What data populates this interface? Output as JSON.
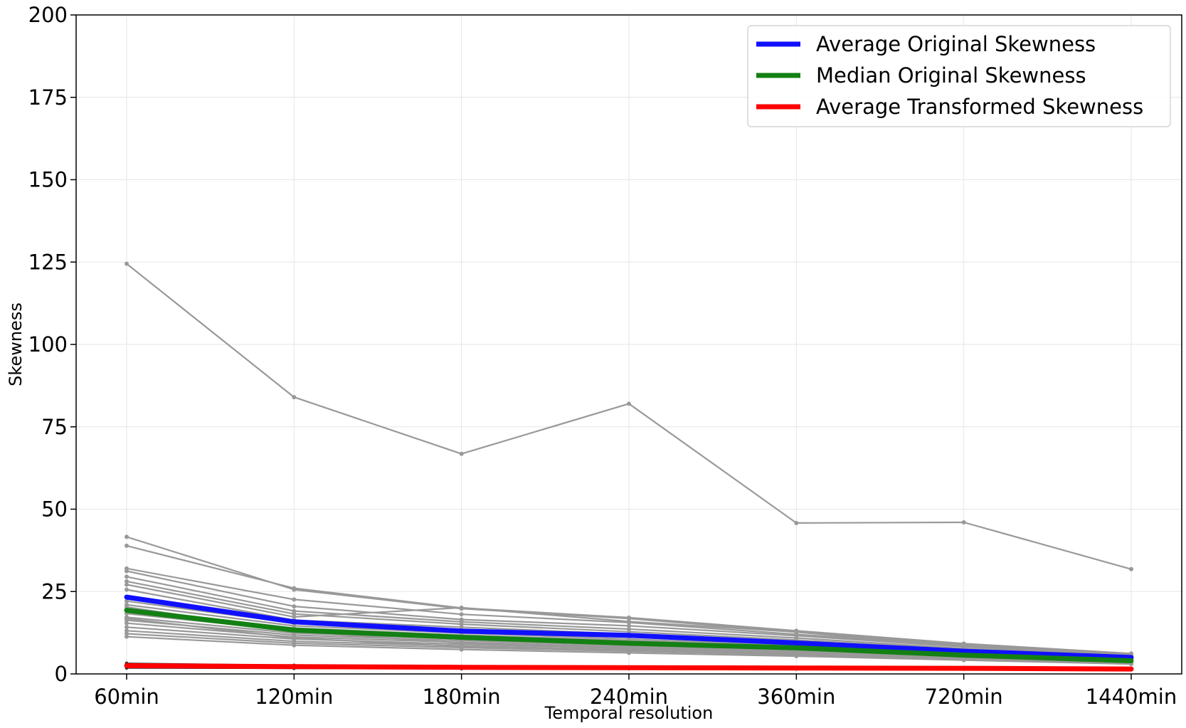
{
  "chart_data": {
    "type": "line",
    "xlabel": "Temporal resolution",
    "ylabel": "Skewness",
    "categories": [
      "60min",
      "120min",
      "180min",
      "240min",
      "360min",
      "720min",
      "1440min"
    ],
    "ylim": [
      0,
      200
    ],
    "yticks": [
      0,
      25,
      50,
      75,
      100,
      125,
      150,
      175,
      200
    ],
    "grid": true,
    "legend_position": "top-right",
    "colors": {
      "individual": "#999999",
      "average_original": "#1010ff",
      "median_original": "#138013",
      "average_transformed": "#ff0000",
      "transformed_individual": "#333333"
    },
    "series": [
      {
        "name": "Average Original Skewness",
        "color": "#1010ff",
        "values": [
          23.3,
          15.8,
          13.0,
          11.7,
          9.4,
          6.9,
          5.0
        ]
      },
      {
        "name": "Median Original Skewness",
        "color": "#138013",
        "values": [
          19.3,
          13.3,
          11.1,
          9.3,
          7.9,
          5.7,
          4.0
        ]
      },
      {
        "name": "Average Transformed Skewness",
        "color": "#ff0000",
        "values": [
          2.5,
          2.2,
          2.0,
          1.9,
          1.8,
          1.7,
          1.5
        ]
      }
    ],
    "individual_series": [
      {
        "values": [
          124.5,
          84.0,
          66.8,
          82.0,
          45.8,
          46.0,
          31.8
        ]
      },
      {
        "values": [
          41.6,
          25.6,
          19.8,
          16.8,
          12.7,
          8.8,
          5.9
        ]
      },
      {
        "values": [
          38.9,
          26.0,
          20.0,
          17.1,
          13.1,
          9.2,
          6.2
        ]
      },
      {
        "values": [
          32.0,
          22.6,
          18.1,
          15.6,
          12.0,
          8.6,
          5.8
        ]
      },
      {
        "values": [
          31.2,
          20.5,
          16.5,
          14.6,
          11.6,
          8.2,
          5.6
        ]
      },
      {
        "values": [
          29.5,
          19.1,
          15.8,
          13.6,
          10.9,
          7.7,
          5.3
        ]
      },
      {
        "values": [
          28.1,
          18.2,
          15.1,
          12.8,
          10.3,
          7.4,
          5.1
        ]
      },
      {
        "values": [
          27.1,
          17.3,
          20.1,
          15.9,
          12.7,
          8.3,
          5.4
        ]
      },
      {
        "values": [
          25.6,
          16.3,
          14.2,
          12.1,
          9.8,
          7.0,
          4.9
        ]
      },
      {
        "values": [
          22.1,
          15.4,
          13.2,
          11.2,
          9.1,
          6.6,
          4.6
        ]
      },
      {
        "values": [
          21.0,
          14.6,
          12.4,
          10.6,
          8.6,
          6.3,
          4.4
        ]
      },
      {
        "values": [
          19.6,
          13.9,
          11.8,
          10.1,
          8.2,
          6.0,
          4.2
        ]
      },
      {
        "values": [
          18.3,
          13.1,
          11.1,
          9.5,
          7.7,
          5.7,
          4.0
        ]
      },
      {
        "values": [
          17.2,
          12.4,
          10.6,
          9.0,
          7.4,
          5.4,
          3.8
        ]
      },
      {
        "values": [
          16.3,
          11.8,
          10.1,
          8.6,
          7.1,
          5.2,
          3.7
        ]
      },
      {
        "values": [
          15.4,
          11.2,
          9.6,
          8.2,
          6.8,
          5.0,
          3.5
        ]
      },
      {
        "values": [
          14.2,
          10.6,
          9.0,
          7.7,
          6.4,
          4.8,
          3.4
        ]
      },
      {
        "values": [
          13.1,
          9.9,
          8.5,
          7.3,
          6.1,
          4.6,
          3.3
        ]
      },
      {
        "values": [
          12.2,
          9.3,
          8.0,
          6.9,
          5.8,
          4.4,
          3.1
        ]
      },
      {
        "values": [
          11.3,
          8.7,
          7.4,
          6.4,
          5.4,
          4.2,
          3.0
        ]
      },
      {
        "values": [
          16.8,
          10.9,
          8.3,
          7.0,
          5.9,
          4.5,
          3.2
        ]
      },
      {
        "values": [
          20.3,
          12.8,
          9.4,
          8.0,
          6.6,
          4.9,
          3.5
        ]
      }
    ],
    "transformed_individual_series": [
      {
        "values": [
          3.2,
          2.6,
          2.2,
          2.0,
          1.9,
          1.8,
          1.6
        ]
      },
      {
        "values": [
          2.8,
          2.4,
          2.1,
          1.9,
          1.8,
          1.7,
          1.5
        ]
      },
      {
        "values": [
          2.2,
          2.0,
          1.9,
          1.8,
          1.7,
          1.6,
          1.4
        ]
      },
      {
        "values": [
          1.8,
          1.7,
          1.6,
          1.6,
          1.5,
          1.5,
          1.3
        ]
      }
    ]
  }
}
